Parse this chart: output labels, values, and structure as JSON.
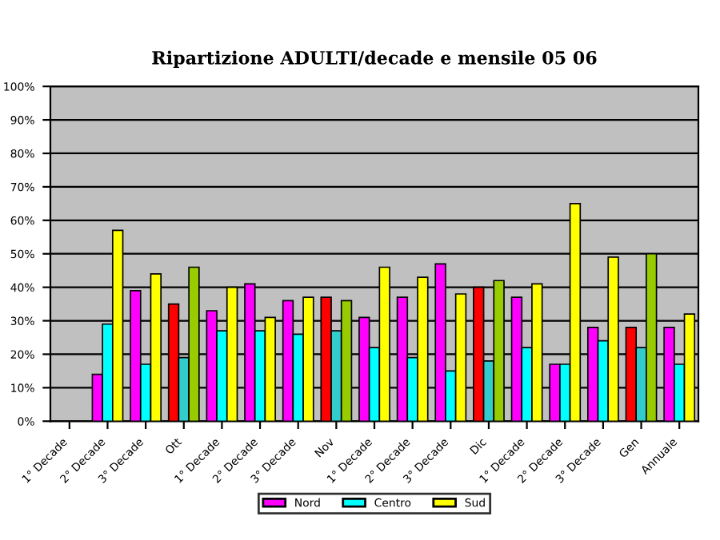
{
  "chart_data": {
    "type": "bar",
    "title": "Ripartizione ADULTI/decade e mensile 05 06",
    "categories": [
      "1° Decade",
      "2° Decade",
      "3° Decade",
      "Ott",
      "1° Decade",
      "2° Decade",
      "3° Decade",
      "Nov",
      "1° Decade",
      "2° Decade",
      "3° Decade",
      "Dic",
      "1° Decade",
      "2° Decade",
      "3° Decade",
      "Gen",
      "Annuale"
    ],
    "series": [
      {
        "name": "Nord",
        "color": "#ff00ff",
        "colors": [
          "#ff00ff",
          "#ff00ff",
          "#ff00ff",
          "#ff0000",
          "#ff00ff",
          "#ff00ff",
          "#ff00ff",
          "#ff0000",
          "#ff00ff",
          "#ff00ff",
          "#ff00ff",
          "#ff0000",
          "#ff00ff",
          "#ff00ff",
          "#ff00ff",
          "#ff0000",
          "#ff00ff"
        ],
        "values": [
          null,
          14,
          39,
          35,
          33,
          41,
          36,
          37,
          31,
          37,
          47,
          40,
          37,
          17,
          28,
          28,
          28
        ]
      },
      {
        "name": "Centro",
        "color": "#00ffff",
        "colors": [
          "#00ffff",
          "#00ffff",
          "#00ffff",
          "#33cccc",
          "#00ffff",
          "#00ffff",
          "#00ffff",
          "#33cccc",
          "#00ffff",
          "#00ffff",
          "#00ffff",
          "#33cccc",
          "#00ffff",
          "#00ffff",
          "#00ffff",
          "#33cccc",
          "#00ffff"
        ],
        "values": [
          null,
          29,
          17,
          19,
          27,
          27,
          26,
          27,
          22,
          19,
          15,
          18,
          22,
          17,
          24,
          22,
          17
        ]
      },
      {
        "name": "Sud",
        "color": "#ffff00",
        "colors": [
          "#ffff00",
          "#ffff00",
          "#ffff00",
          "#99cc00",
          "#ffff00",
          "#ffff00",
          "#ffff00",
          "#99cc00",
          "#ffff00",
          "#ffff00",
          "#ffff00",
          "#99cc00",
          "#ffff00",
          "#ffff00",
          "#ffff00",
          "#99cc00",
          "#ffff00"
        ],
        "values": [
          null,
          57,
          44,
          46,
          40,
          31,
          37,
          36,
          46,
          43,
          38,
          42,
          41,
          65,
          49,
          50,
          32
        ]
      }
    ],
    "ylim": [
      0,
      100
    ],
    "yticks": [
      {
        "value": 0,
        "label": "0%"
      },
      {
        "value": 10,
        "label": "10%"
      },
      {
        "value": 20,
        "label": "20%"
      },
      {
        "value": 30,
        "label": "30%"
      },
      {
        "value": 40,
        "label": "40%"
      },
      {
        "value": 50,
        "label": "50%"
      },
      {
        "value": 60,
        "label": "60%"
      },
      {
        "value": 70,
        "label": "70%"
      },
      {
        "value": 80,
        "label": "80%"
      },
      {
        "value": 90,
        "label": "90%"
      },
      {
        "value": 100,
        "label": "100%"
      }
    ],
    "grid": "y",
    "legend": "bottom"
  }
}
